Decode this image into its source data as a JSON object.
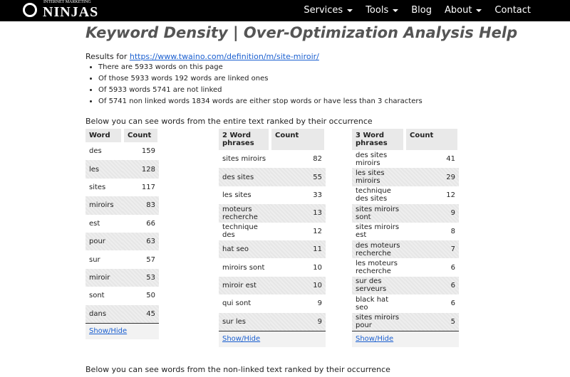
{
  "nav": {
    "logo_small": "INTERNET MARKETING",
    "logo_big": "NINJAS",
    "items": [
      "Services",
      "Tools",
      "Blog",
      "About",
      "Contact"
    ]
  },
  "title": "Keyword Density | Over-Optimization Analysis Help",
  "results_label": "Results for",
  "results_url": "https://www.twaino.com/definition/m/site-miroir/",
  "bullets": [
    "There are 5933 words on this page",
    "Of those 5933 words 192 words are linked ones",
    "Of 5933 words 5741 are not linked",
    "Of 5741 non linked words 1834 words are either stop words or have less than 3 characters"
  ],
  "section_heading": "Below you can see words from the entire text ranked by their occurrence",
  "tables": [
    {
      "headers": [
        "Word",
        "Count"
      ],
      "rows": [
        [
          "des",
          159
        ],
        [
          "les",
          128
        ],
        [
          "sites",
          117
        ],
        [
          "miroirs",
          83
        ],
        [
          "est",
          66
        ],
        [
          "pour",
          63
        ],
        [
          "sur",
          57
        ],
        [
          "miroir",
          53
        ],
        [
          "sont",
          50
        ],
        [
          "dans",
          45
        ]
      ],
      "toggle": "Show/Hide"
    },
    {
      "headers": [
        "2 Word phrases",
        "Count"
      ],
      "rows": [
        [
          "sites miroirs",
          82
        ],
        [
          "des sites",
          55
        ],
        [
          "les sites",
          33
        ],
        [
          "moteurs recherche",
          13
        ],
        [
          "technique des",
          12
        ],
        [
          "hat seo",
          11
        ],
        [
          "miroirs sont",
          10
        ],
        [
          "miroir est",
          10
        ],
        [
          "qui sont",
          9
        ],
        [
          "sur les",
          9
        ]
      ],
      "toggle": "Show/Hide"
    },
    {
      "headers": [
        "3 Word phrases",
        "Count"
      ],
      "rows": [
        [
          "des sites miroirs",
          41
        ],
        [
          "les sites miroirs",
          29
        ],
        [
          "technique des sites",
          12
        ],
        [
          "sites miroirs sont",
          9
        ],
        [
          "sites miroirs est",
          8
        ],
        [
          "des moteurs recherche",
          7
        ],
        [
          "les moteurs recherche",
          6
        ],
        [
          "sur des serveurs",
          6
        ],
        [
          "black hat seo",
          6
        ],
        [
          "sites miroirs pour",
          5
        ]
      ],
      "toggle": "Show/Hide"
    }
  ],
  "bottom_heading": "Below you can see words from the non-linked text ranked by their occurrence"
}
